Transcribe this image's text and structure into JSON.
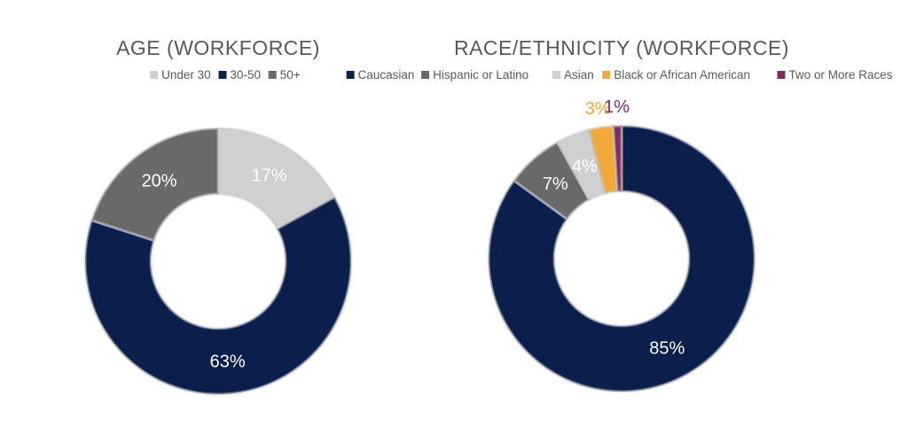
{
  "chart_data": [
    {
      "type": "donut",
      "title": "AGE (WORKFORCE)",
      "legend_position": "top",
      "categories": [
        "Under 30",
        "30-50",
        "50+"
      ],
      "values": [
        17,
        63,
        20
      ],
      "labels": [
        "17%",
        "63%",
        "20%"
      ],
      "colors": [
        "#d0d0d0",
        "#0b1f4d",
        "#696969"
      ],
      "label_colors": [
        "#ffffff",
        "#ffffff",
        "#ffffff"
      ]
    },
    {
      "type": "donut",
      "title": "RACE/ETHNICITY (WORKFORCE)",
      "legend_position": "top",
      "categories": [
        "Caucasian",
        "Hispanic or Latino",
        "Asian",
        "Black or African American",
        "Two or More Races"
      ],
      "values": [
        85,
        7,
        4,
        3,
        1
      ],
      "labels": [
        "85%",
        "7%",
        "4%",
        "3%",
        "1%"
      ],
      "colors": [
        "#0b1f4d",
        "#696969",
        "#d0d0d0",
        "#f2a93b",
        "#7d2e5c"
      ],
      "label_colors": [
        "#ffffff",
        "#ffffff",
        "#ffffff",
        "#f2a93b",
        "#7d2e5c"
      ]
    }
  ]
}
